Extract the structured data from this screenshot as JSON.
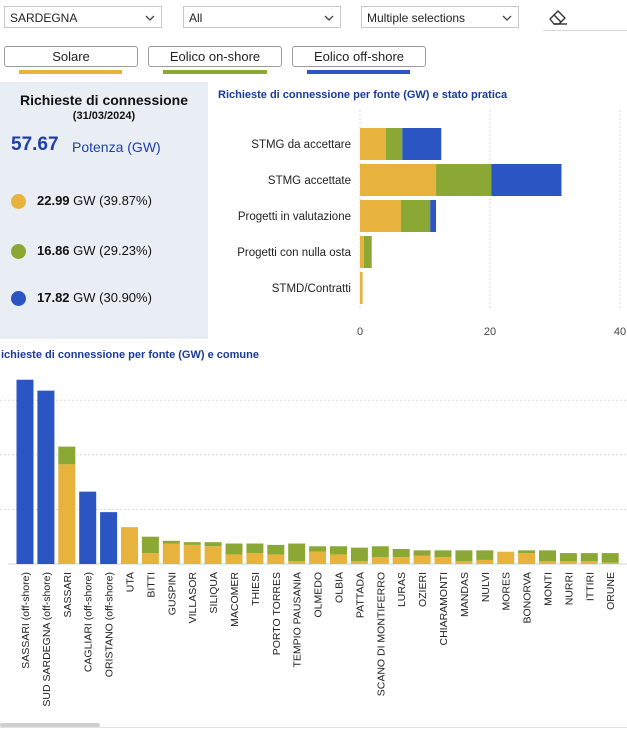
{
  "filters": {
    "region": "SARDEGNA",
    "second": "All",
    "third": "Multiple selections"
  },
  "toggles": [
    {
      "label": "Solare",
      "color": "#e8b33c"
    },
    {
      "label": "Eolico on-shore",
      "color": "#8aa833"
    },
    {
      "label": "Eolico off-shore",
      "color": "#2c55c4"
    }
  ],
  "kpi": {
    "title": "Richieste di connessione",
    "date": "(31/03/2024)",
    "total": "57.67",
    "total_unit": "Potenza (GW)",
    "items": [
      {
        "value": "22.99",
        "rest": "GW (39.87%)",
        "color": "#e8b33c"
      },
      {
        "value": "16.86",
        "rest": "GW (29.23%)",
        "color": "#8aa833"
      },
      {
        "value": "17.82",
        "rest": "GW (30.90%)",
        "color": "#2c55c4"
      }
    ]
  },
  "colors": {
    "solare": "#e8b33c",
    "onshore": "#8aa833",
    "offshore": "#2c55c4"
  },
  "chart_data": [
    {
      "type": "bar",
      "orientation": "horizontal",
      "stacked": true,
      "title": "Richieste di connessione per fonte (GW) e stato pratica",
      "categories": [
        "STMG da accettare",
        "STMG accettate",
        "Progetti in valutazione",
        "Progetti con nulla osta",
        "STMD/Contratti"
      ],
      "series": [
        {
          "name": "Solare",
          "values": [
            4.0,
            11.7,
            6.3,
            0.6,
            0.4
          ]
        },
        {
          "name": "Eolico on-shore",
          "values": [
            2.5,
            8.5,
            4.5,
            1.2,
            0.0
          ]
        },
        {
          "name": "Eolico off-shore",
          "values": [
            6.0,
            10.8,
            0.9,
            0.0,
            0.0
          ]
        }
      ],
      "xticks": [
        "0",
        "20",
        "40"
      ],
      "xlim": [
        0,
        40
      ],
      "grid": true
    },
    {
      "type": "bar",
      "stacked": true,
      "title": "ichieste di connessione per fonte (GW) e comune",
      "categories": [
        "SASSARI (off-shore)",
        "SUD SARDEGNA (off-shore)",
        "SASSARI",
        "CAGLIARI (off-shore)",
        "ORISTANO (off-shore)",
        "UTA",
        "BITTI",
        "GUSPINI",
        "VILLASOR",
        "SILIQUA",
        "MACOMER",
        "THIESI",
        "PORTO TORRES",
        "TEMPIO PAUSANIA",
        "OLMEDO",
        "OLBIA",
        "PATTADA",
        "SCANO DI MONTIFERRO",
        "LURAS",
        "OZIERI",
        "CHIARAMONTI",
        "MANDAS",
        "NULVI",
        "MORES",
        "BONORVA",
        "MONTI",
        "NURRI",
        "ITTIRI",
        "ORUNE"
      ],
      "series": [
        {
          "name": "Solare",
          "values": [
            0,
            0,
            3.65,
            0,
            0,
            1.35,
            0.4,
            0.75,
            0.7,
            0.65,
            0.35,
            0.4,
            0.35,
            0.1,
            0.45,
            0.35,
            0.1,
            0.25,
            0.25,
            0.3,
            0.25,
            0.1,
            0.15,
            0.45,
            0.4,
            0.1,
            0.1,
            0.1,
            0.05
          ]
        },
        {
          "name": "Eolico on-shore",
          "values": [
            0,
            0,
            0.65,
            0,
            0,
            0,
            0.6,
            0.1,
            0.1,
            0.15,
            0.4,
            0.35,
            0.35,
            0.65,
            0.2,
            0.3,
            0.5,
            0.4,
            0.3,
            0.2,
            0.25,
            0.4,
            0.35,
            0,
            0.1,
            0.4,
            0.3,
            0.3,
            0.35
          ]
        },
        {
          "name": "Eolico off-shore",
          "values": [
            6.75,
            6.35,
            0,
            2.65,
            1.9,
            0,
            0,
            0,
            0,
            0,
            0,
            0,
            0,
            0,
            0,
            0,
            0,
            0,
            0,
            0,
            0,
            0,
            0,
            0,
            0,
            0,
            0,
            0,
            0
          ]
        }
      ],
      "ylim": [
        0,
        7
      ],
      "grid": true
    }
  ]
}
